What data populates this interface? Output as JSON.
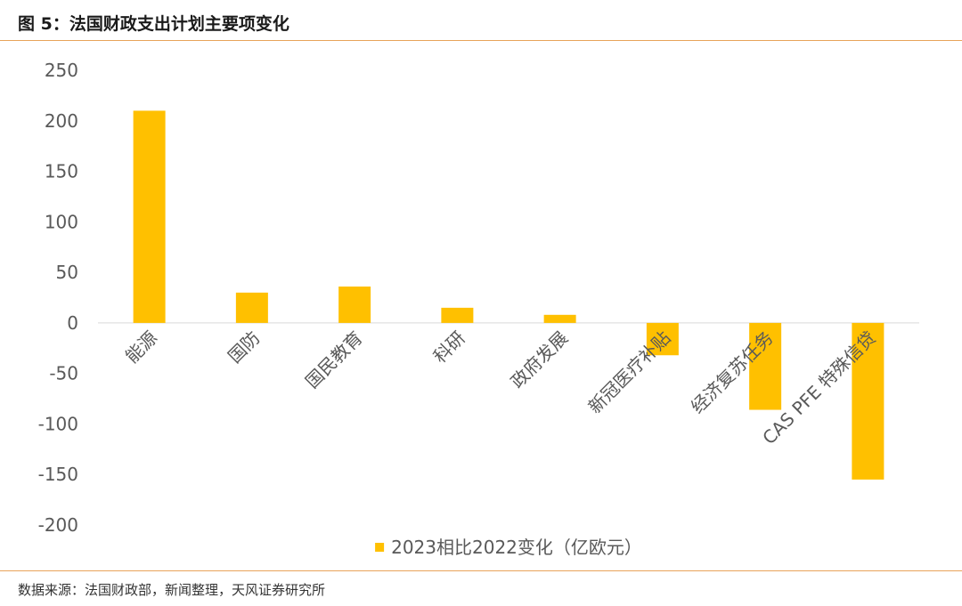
{
  "figure": {
    "title": "图 5：法国财政支出计划主要项变化",
    "source": "数据来源：法国财政部，新闻整理，天风证券研究所"
  },
  "chart_data": {
    "type": "bar",
    "categories": [
      "能源",
      "国防",
      "国民教育",
      "科研",
      "政府发展",
      "新冠医疗补贴",
      "经济复苏任务",
      "CAS PFE 特殊信贷"
    ],
    "series": [
      {
        "name": "2023相比2022变化（亿欧元）",
        "values": [
          210,
          30,
          36,
          15,
          8,
          -32,
          -86,
          -155
        ],
        "color": "#FFC000"
      }
    ],
    "ylim": [
      -200,
      250
    ],
    "yticks": [
      250,
      200,
      150,
      100,
      50,
      0,
      -50,
      -100,
      -150,
      -200
    ],
    "ytick_labels": [
      "250",
      "200",
      "150",
      "100",
      "50",
      "0",
      "-50",
      "-100",
      "-150",
      "-200"
    ],
    "xlabel": "",
    "ylabel": "",
    "grid": false,
    "legend": "bottom-center"
  }
}
